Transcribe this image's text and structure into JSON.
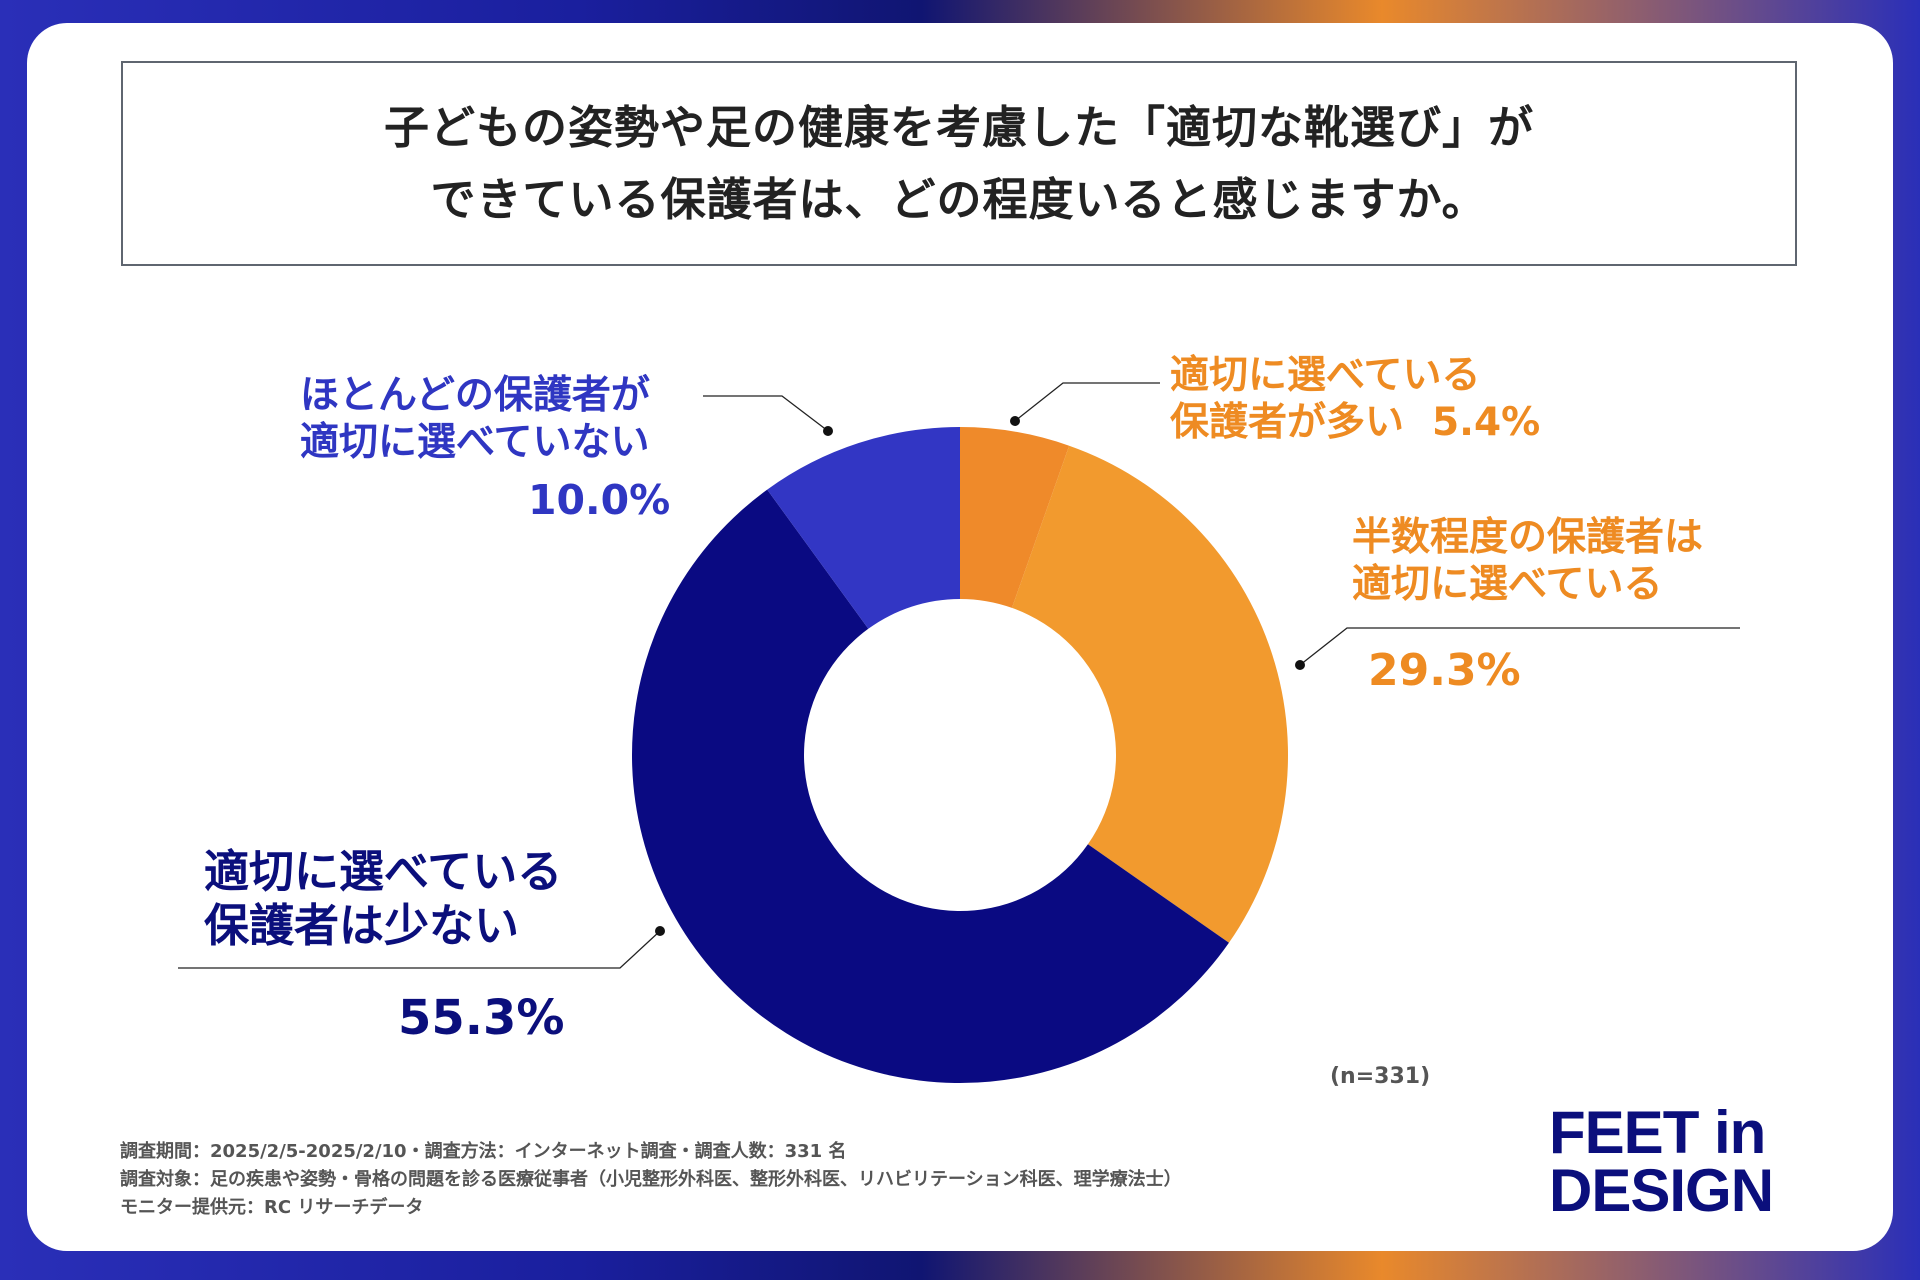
{
  "title": {
    "line1": "子どもの姿勢や足の健康を考慮した「適切な靴選び」が",
    "line2": "できている保護者は、どの程度いると感じますか。"
  },
  "chart_data": {
    "type": "pie",
    "donut": true,
    "title": "子どもの姿勢や足の健康を考慮した「適切な靴選び」ができている保護者は、どの程度いると感じますか。",
    "sample_size": "(n=331)",
    "slices": [
      {
        "label_lines": [
          "適切に選べている",
          "保護者が多い"
        ],
        "value": 5.4,
        "value_label": "5.4%",
        "color": "#ef8a2a"
      },
      {
        "label_lines": [
          "半数程度の保護者は",
          "適切に選べている"
        ],
        "value": 29.3,
        "value_label": "29.3%",
        "color": "#f29a2e"
      },
      {
        "label_lines": [
          "適切に選べている",
          "保護者は少ない"
        ],
        "value": 55.3,
        "value_label": "55.3%",
        "color": "#0a0a82"
      },
      {
        "label_lines": [
          "ほとんどの保護者が",
          "適切に選べていない"
        ],
        "value": 10.0,
        "value_label": "10.0%",
        "color": "#3236c4"
      }
    ]
  },
  "footer": {
    "line1": "調査期間：2025/2/5-2025/2/10・調査方法：インターネット調査・調査人数：331 名",
    "line2": "調査対象：足の疾患や姿勢・骨格の問題を診る医療従事者（小児整形外科医、整形外科医、リハビリテーション科医、理学療法士）",
    "line3": "モニター提供元：RC リサーチデータ"
  },
  "logo": {
    "line1": "FEET in",
    "line2": "DESIGN"
  }
}
